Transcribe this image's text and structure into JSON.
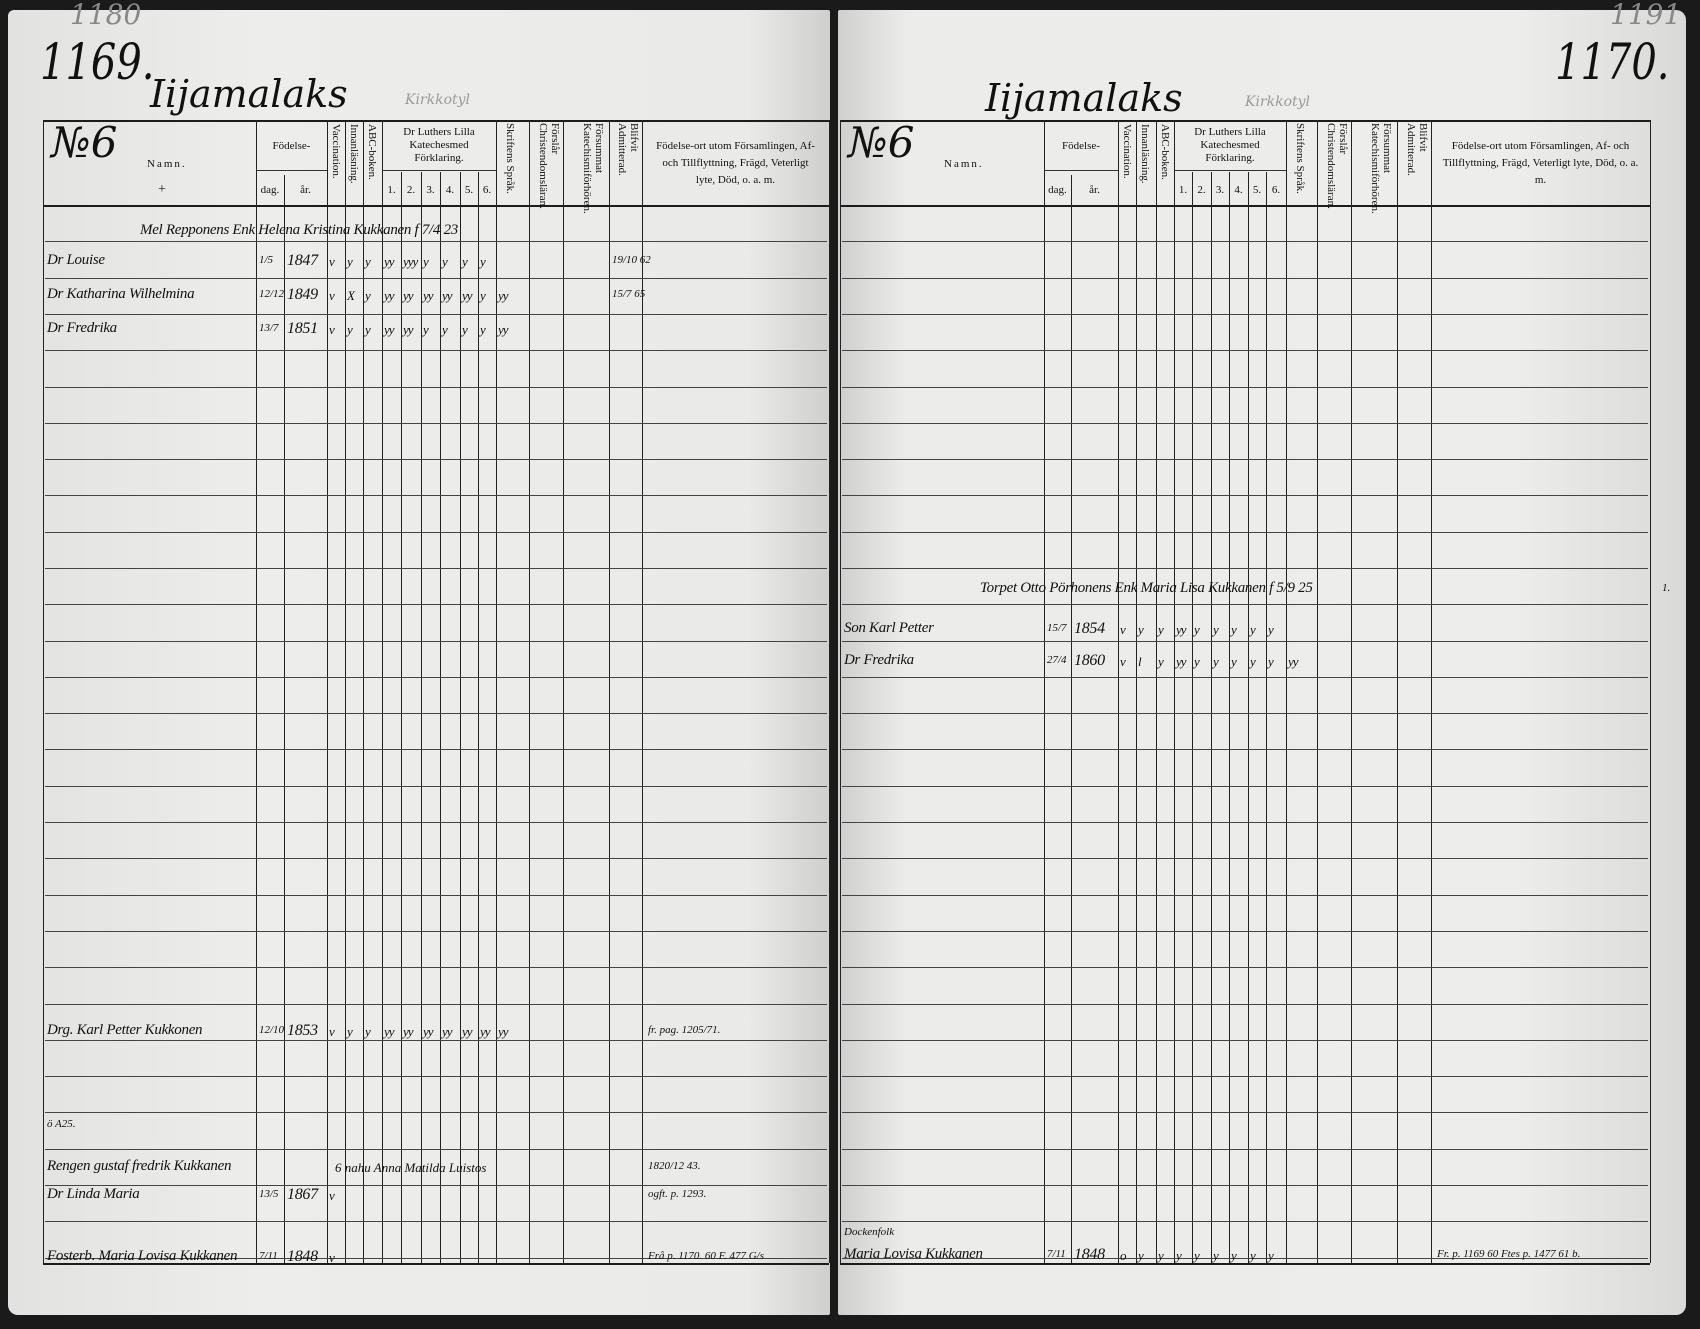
{
  "document_type": "parish register",
  "columns": {
    "name": "Namn.",
    "cross": "+",
    "birth": "Födelse-",
    "dag": "dag.",
    "ar": "år.",
    "vaccination": "Vaccination.",
    "innanlasning": "Innanläsning.",
    "abc": "ABC-boken.",
    "katekes": "Dr Luthers Lilla Katechesmed Förklaring.",
    "katekes_parts": [
      "1.",
      "2.",
      "3.",
      "4.",
      "5.",
      "6."
    ],
    "skrift": "Skriftens Språk.",
    "forsl": "Förslår Christendomsläran.",
    "forsummat": "Försummat Katechismiförhören.",
    "admitterad": "Blifvit Admitterad.",
    "remarks": "Födelse-ort utom Församlingen, Af- och Tillflyttning, Frägd, Veterligt lyte, Död, o. a. m."
  },
  "left": {
    "page_number": "1169.",
    "old_page_number": "1180",
    "parish": "Iijamalaks",
    "village": "Kirkkotyl",
    "house_number": "№6",
    "entries": [
      {
        "name": "Mel Repponens Enk Helena Kristina Kukkanen f 7/4 23",
        "dag": "",
        "ar": "",
        "marks": "",
        "admit": "",
        "note": ""
      },
      {
        "name": "Dr Louise",
        "dag": "1/5",
        "ar": "1847",
        "marks": "v y y yy yyy y y y y",
        "admit": "19/10 62",
        "note": ""
      },
      {
        "name": "Dr Katharina Wilhelmina",
        "dag": "12/12",
        "ar": "1849",
        "marks": "v X y yy yy yy yy yy y yy",
        "admit": "15/7 65",
        "note": ""
      },
      {
        "name": "Dr Fredrika",
        "dag": "13/7",
        "ar": "1851",
        "marks": "v y y yy yy y y y y yy",
        "admit": "",
        "note": ""
      },
      {
        "name": "Drg. Karl Petter Kukkonen",
        "dag": "12/10",
        "ar": "1853",
        "marks": "v y y yy yy yy yy yy yy yy",
        "admit": "",
        "note": "fr. pag. 1205/71."
      },
      {
        "name": "ö A25.",
        "dag": "",
        "ar": "",
        "marks": "",
        "admit": "",
        "note": ""
      },
      {
        "name": "Rengen gustaf fredrik Kukkanen",
        "dag": "",
        "ar": "",
        "marks": "6 nahu Anna Matilda Luistos",
        "admit": "",
        "note": "1820/12 43."
      },
      {
        "name": "Dr Linda Maria",
        "dag": "13/5",
        "ar": "1867",
        "marks": "v",
        "admit": "",
        "note": "ogft. p. 1293."
      },
      {
        "name": "Fosterb. Maria Lovisa Kukkanen",
        "dag": "7/11",
        "ar": "1848",
        "marks": "v",
        "admit": "",
        "note": "Frå p. 1170. 60 F. 477 G/s"
      }
    ]
  },
  "right": {
    "page_number": "1170.",
    "old_page_number": "1191",
    "parish": "Iijamalaks",
    "village": "Kirkkotyl",
    "house_number": "№6",
    "entries": [
      {
        "name": "Torpet Otto Pörhonens Enk Maria Lisa Kukkanen f 5/9 25",
        "dag": "",
        "ar": "",
        "marks": "",
        "note": "1."
      },
      {
        "name": "Son Karl Petter",
        "dag": "15/7",
        "ar": "1854",
        "marks": "v y y yy y y y y y",
        "note": ""
      },
      {
        "name": "Dr Fredrika",
        "dag": "27/4",
        "ar": "1860",
        "marks": "v l y yy y y y y y yy",
        "note": ""
      },
      {
        "name": "Dockenfolk",
        "dag": "",
        "ar": "",
        "marks": "",
        "note": ""
      },
      {
        "name": "Maria Lovisa Kukkanen",
        "dag": "7/11",
        "ar": "1848",
        "marks": "o y y y y y y y y",
        "note": "Fr. p. 1169 60 Ftes p. 1477 61 b."
      }
    ]
  }
}
